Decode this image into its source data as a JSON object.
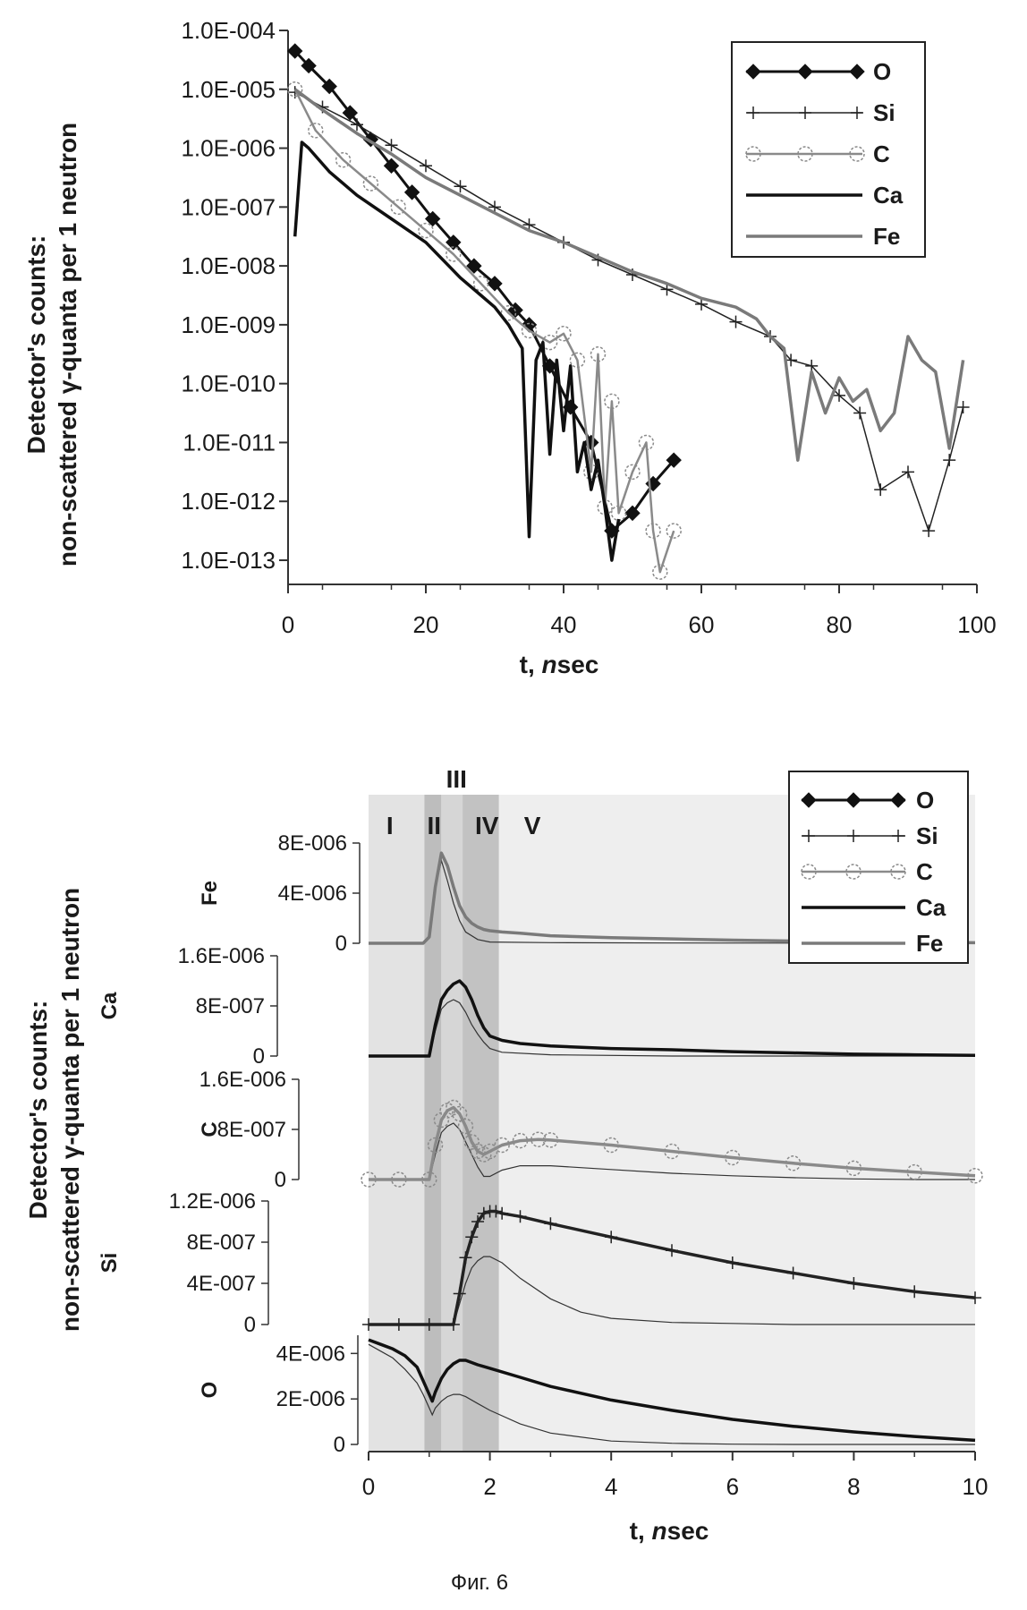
{
  "caption": "Фиг. 6",
  "chart_data": [
    {
      "type": "line",
      "yscale": "log",
      "title": "",
      "xlabel_prefix": "t, ",
      "xlabel_italic": "n",
      "xlabel_suffix": "sec",
      "ylabel_line1": "Detector's counts:",
      "ylabel_line2": "non-scattered γ-quanta per 1 neutron",
      "xlim": [
        0,
        100
      ],
      "ylim_exp": [
        -13,
        -4
      ],
      "xticks": [
        0,
        20,
        40,
        60,
        80,
        100
      ],
      "yticks": [
        "1.0E-004",
        "1.0E-005",
        "1.0E-006",
        "1.0E-007",
        "1.0E-008",
        "1.0E-009",
        "1.0E-010",
        "1.0E-011",
        "1.0E-012",
        "1.0E-013"
      ],
      "legend": [
        "O",
        "Si",
        "C",
        "Ca",
        "Fe"
      ],
      "series": [
        {
          "name": "O",
          "color": "#111111",
          "x": [
            1,
            3,
            6,
            9,
            12,
            15,
            18,
            21,
            24,
            27,
            30,
            33,
            35,
            38,
            41,
            44,
            47,
            50,
            53,
            56
          ],
          "log10y": [
            -4.35,
            -4.6,
            -4.95,
            -5.4,
            -5.85,
            -6.3,
            -6.75,
            -7.2,
            -7.6,
            -8.0,
            -8.3,
            -8.75,
            -9.0,
            -9.7,
            -10.4,
            -11.0,
            -12.5,
            -12.2,
            -11.7,
            -11.3
          ]
        },
        {
          "name": "Si",
          "color": "#222222",
          "x": [
            1,
            5,
            10,
            15,
            20,
            25,
            30,
            35,
            40,
            45,
            50,
            55,
            60,
            65,
            70,
            73,
            76,
            80,
            83,
            86,
            90,
            93,
            96,
            98
          ],
          "log10y": [
            -5.05,
            -5.3,
            -5.6,
            -5.95,
            -6.3,
            -6.65,
            -7.0,
            -7.3,
            -7.6,
            -7.9,
            -8.15,
            -8.4,
            -8.65,
            -8.95,
            -9.2,
            -9.6,
            -9.7,
            -10.2,
            -10.5,
            -11.8,
            -11.5,
            -12.5,
            -11.3,
            -10.4
          ]
        },
        {
          "name": "C",
          "color": "#8a8a8a",
          "x": [
            1,
            4,
            8,
            12,
            16,
            20,
            24,
            28,
            32,
            35,
            38,
            40,
            42,
            44,
            45,
            46,
            47,
            48,
            50,
            52,
            53,
            54,
            56
          ],
          "log10y": [
            -5.0,
            -5.7,
            -6.2,
            -6.6,
            -7.0,
            -7.4,
            -7.8,
            -8.3,
            -8.8,
            -9.1,
            -9.3,
            -9.15,
            -9.6,
            -11.5,
            -9.5,
            -12.1,
            -10.3,
            -12.2,
            -11.5,
            -11.0,
            -12.5,
            -13.2,
            -12.5
          ]
        },
        {
          "name": "Ca",
          "color": "#101010",
          "x": [
            1,
            2,
            3,
            6,
            10,
            15,
            20,
            25,
            28,
            30,
            32,
            34,
            35,
            36,
            37,
            38,
            39,
            40,
            41,
            42,
            43,
            44,
            45,
            46,
            47,
            48
          ],
          "log10y": [
            -7.5,
            -5.9,
            -6.0,
            -6.4,
            -6.8,
            -7.2,
            -7.6,
            -8.2,
            -8.5,
            -8.7,
            -9.0,
            -9.4,
            -12.6,
            -9.6,
            -9.3,
            -11.2,
            -9.6,
            -10.8,
            -9.7,
            -11.5,
            -11.0,
            -11.8,
            -11.3,
            -12.1,
            -13.0,
            -12.3
          ]
        },
        {
          "name": "Fe",
          "color": "#7a7a7a",
          "x": [
            1,
            5,
            10,
            15,
            20,
            25,
            30,
            35,
            40,
            45,
            50,
            55,
            60,
            65,
            68,
            70,
            72,
            74,
            76,
            78,
            80,
            82,
            84,
            86,
            88,
            90,
            92,
            94,
            96,
            98
          ],
          "log10y": [
            -5.0,
            -5.35,
            -5.75,
            -6.1,
            -6.5,
            -6.8,
            -7.1,
            -7.4,
            -7.6,
            -7.85,
            -8.1,
            -8.3,
            -8.55,
            -8.7,
            -8.9,
            -9.2,
            -9.4,
            -11.3,
            -9.8,
            -10.5,
            -9.9,
            -10.3,
            -10.1,
            -10.8,
            -10.5,
            -9.2,
            -9.6,
            -9.8,
            -11.1,
            -9.6
          ]
        }
      ]
    },
    {
      "type": "line",
      "title": "",
      "xlabel_prefix": "t, ",
      "xlabel_italic": "n",
      "xlabel_suffix": "sec",
      "ylabel_line1": "Detector's counts:",
      "ylabel_line2": "non-scattered γ-quanta per 1 neutron",
      "xlim": [
        0,
        10
      ],
      "xticks": [
        0,
        2,
        4,
        6,
        8,
        10
      ],
      "legend": [
        "O",
        "Si",
        "C",
        "Ca",
        "Fe"
      ],
      "regions": [
        "I",
        "II",
        "III",
        "IV",
        "V"
      ],
      "subplots": [
        {
          "name": "Fe",
          "color": "#7a7a7a",
          "ylim": [
            0,
            8e-06
          ],
          "yticks": [
            "8E-006",
            "4E-006",
            "0"
          ],
          "t": [
            0,
            0.5,
            0.9,
            1.0,
            1.1,
            1.2,
            1.3,
            1.4,
            1.5,
            1.6,
            1.7,
            1.8,
            1.9,
            2.0,
            2.2,
            2.5,
            3,
            4,
            5,
            6,
            7,
            8,
            9,
            10
          ],
          "y": [
            0,
            0,
            0,
            5e-07,
            4.5e-06,
            7.2e-06,
            6.2e-06,
            4.5e-06,
            3e-06,
            2.1e-06,
            1.6e-06,
            1.3e-06,
            1.1e-06,
            1e-06,
            9e-07,
            8e-07,
            6e-07,
            4.5e-07,
            3.5e-07,
            2.5e-07,
            1.8e-07,
            1.2e-07,
            8e-08,
            4e-08
          ],
          "ref_t": [
            0,
            0.9,
            1.0,
            1.1,
            1.2,
            1.3,
            1.4,
            1.5,
            1.6,
            1.8,
            2.0,
            3,
            5,
            10
          ],
          "ref_y": [
            0,
            0,
            5e-07,
            4.5e-06,
            6.6e-06,
            5e-06,
            3.2e-06,
            1.8e-06,
            9e-07,
            3e-07,
            1e-07,
            5e-08,
            2e-08,
            0
          ]
        },
        {
          "name": "Ca",
          "color": "#111111",
          "ylim": [
            0,
            1.6e-06
          ],
          "yticks": [
            "1.6E-006",
            "8E-007",
            "0"
          ],
          "t": [
            0,
            0.5,
            1.0,
            1.1,
            1.2,
            1.3,
            1.4,
            1.5,
            1.6,
            1.7,
            1.8,
            1.9,
            2.0,
            2.2,
            2.5,
            3,
            4,
            5,
            6,
            7,
            8,
            9,
            10
          ],
          "y": [
            0,
            0,
            0,
            5e-07,
            9e-07,
            1.05e-06,
            1.15e-06,
            1.2e-06,
            1.1e-06,
            9e-07,
            6.5e-07,
            4.5e-07,
            3.2e-07,
            2.5e-07,
            2e-07,
            1.6e-07,
            1.2e-07,
            1e-07,
            7e-08,
            5e-08,
            3e-08,
            2e-08,
            1e-08
          ],
          "ref_t": [
            0,
            1.0,
            1.1,
            1.2,
            1.3,
            1.4,
            1.5,
            1.6,
            1.7,
            1.8,
            1.9,
            2.0,
            2.2,
            3,
            5,
            10
          ],
          "ref_y": [
            0,
            0,
            4e-07,
            7.5e-07,
            8.5e-07,
            9e-07,
            8.5e-07,
            7e-07,
            5e-07,
            3.5e-07,
            2.2e-07,
            1.2e-07,
            6e-08,
            2e-08,
            0,
            0
          ]
        },
        {
          "name": "C",
          "color": "#8a8a8a",
          "ylim": [
            0,
            1.6e-06
          ],
          "yticks": [
            "1.6E-006",
            "8E-007",
            "0"
          ],
          "t": [
            0,
            0.5,
            1.0,
            1.1,
            1.2,
            1.3,
            1.4,
            1.5,
            1.6,
            1.7,
            1.8,
            1.9,
            2.0,
            2.2,
            2.5,
            2.8,
            3,
            4,
            5,
            6,
            7,
            8,
            9,
            10
          ],
          "y": [
            0,
            0,
            0,
            5.5e-07,
            9.5e-07,
            1.1e-06,
            1.15e-06,
            1.05e-06,
            8.5e-07,
            6e-07,
            4.5e-07,
            4e-07,
            4.5e-07,
            5.5e-07,
            6.2e-07,
            6.4e-07,
            6.3e-07,
            5.5e-07,
            4.5e-07,
            3.5e-07,
            2.6e-07,
            1.8e-07,
            1.2e-07,
            6e-08
          ],
          "ref_t": [
            0,
            1.0,
            1.1,
            1.2,
            1.3,
            1.4,
            1.5,
            1.6,
            1.7,
            1.8,
            1.9,
            2.0,
            2.2,
            2.5,
            3,
            4,
            5,
            6,
            7,
            8,
            9,
            10
          ],
          "ref_y": [
            0,
            0,
            4e-07,
            7.5e-07,
            8.5e-07,
            9e-07,
            8e-07,
            6e-07,
            4e-07,
            2e-07,
            5e-08,
            5e-08,
            1.5e-07,
            2.2e-07,
            2.2e-07,
            1.6e-07,
            1e-07,
            6e-08,
            3e-08,
            1e-08,
            0,
            0
          ]
        },
        {
          "name": "Si",
          "color": "#222222",
          "ylim": [
            0,
            1.2e-06
          ],
          "yticks": [
            "1.2E-006",
            "8E-007",
            "4E-007",
            "0"
          ],
          "t": [
            0,
            0.5,
            1.0,
            1.4,
            1.5,
            1.6,
            1.7,
            1.8,
            1.9,
            2.0,
            2.1,
            2.2,
            2.5,
            3,
            4,
            5,
            6,
            7,
            8,
            9,
            10
          ],
          "y": [
            0,
            0,
            0,
            0,
            3e-07,
            6.5e-07,
            8.5e-07,
            1e-06,
            1.08e-06,
            1.1e-06,
            1.1e-06,
            1.08e-06,
            1.05e-06,
            9.8e-07,
            8.5e-07,
            7.2e-07,
            6e-07,
            5e-07,
            4e-07,
            3.2e-07,
            2.6e-07
          ],
          "ref_t": [
            0,
            1.0,
            1.4,
            1.5,
            1.6,
            1.7,
            1.8,
            1.9,
            2.0,
            2.2,
            2.5,
            3,
            3.5,
            4,
            5,
            6,
            7,
            8,
            10
          ],
          "ref_y": [
            0,
            0,
            0,
            2e-07,
            4e-07,
            5.5e-07,
            6.2e-07,
            6.6e-07,
            6.6e-07,
            6e-07,
            4.5e-07,
            2.5e-07,
            1.2e-07,
            6e-08,
            2e-08,
            1e-08,
            0,
            0,
            0
          ]
        },
        {
          "name": "O",
          "color": "#111111",
          "ylim": [
            0,
            4.8e-06
          ],
          "yticks": [
            "4E-006",
            "2E-006",
            "0"
          ],
          "t": [
            0,
            0.2,
            0.4,
            0.6,
            0.8,
            0.9,
            1.0,
            1.05,
            1.1,
            1.2,
            1.3,
            1.4,
            1.5,
            1.6,
            1.7,
            1.8,
            2.0,
            2.5,
            3,
            4,
            5,
            6,
            7,
            8,
            9,
            10
          ],
          "y": [
            4.6e-06,
            4.4e-06,
            4.2e-06,
            3.9e-06,
            3.4e-06,
            2.8e-06,
            2.2e-06,
            1.9e-06,
            2.3e-06,
            2.9e-06,
            3.3e-06,
            3.55e-06,
            3.7e-06,
            3.7e-06,
            3.6e-06,
            3.5e-06,
            3.35e-06,
            2.95e-06,
            2.55e-06,
            1.95e-06,
            1.5e-06,
            1.1e-06,
            8e-07,
            5.5e-07,
            3.5e-07,
            1.8e-07
          ],
          "ref_t": [
            0,
            0.2,
            0.4,
            0.6,
            0.8,
            0.9,
            1.0,
            1.05,
            1.1,
            1.2,
            1.3,
            1.4,
            1.5,
            1.6,
            1.8,
            2.0,
            2.5,
            3,
            4,
            5,
            6,
            7,
            10
          ],
          "ref_y": [
            4.4e-06,
            4.1e-06,
            3.8e-06,
            3.3e-06,
            2.7e-06,
            2.2e-06,
            1.6e-06,
            1.3e-06,
            1.6e-06,
            1.9e-06,
            2.1e-06,
            2.2e-06,
            2.2e-06,
            2.1e-06,
            1.8e-06,
            1.5e-06,
            9e-07,
            5e-07,
            1.5e-07,
            5e-08,
            1e-08,
            0,
            0
          ]
        }
      ]
    }
  ]
}
